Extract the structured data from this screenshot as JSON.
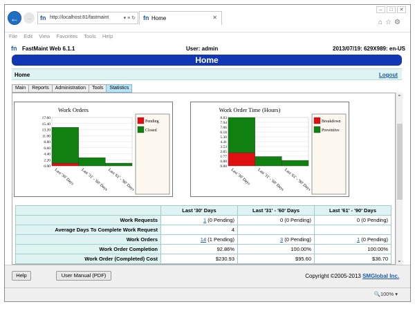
{
  "browser": {
    "url": "http://localhost:81/fastmaint",
    "tab_title": "Home",
    "menu": [
      "File",
      "Edit",
      "View",
      "Favorites",
      "Tools",
      "Help"
    ],
    "zoom": "100%"
  },
  "app": {
    "name": "FastMaint Web 6.1.1",
    "user": "User: admin",
    "datetime": "2013/07/19: 629X989: en-US",
    "page_title": "Home",
    "breadcrumb": "Home",
    "logout": "Logout"
  },
  "tabs": [
    {
      "label": "Main"
    },
    {
      "label": "Reports"
    },
    {
      "label": "Administration"
    },
    {
      "label": "Tools"
    },
    {
      "label": "Statistics",
      "active": true
    }
  ],
  "table": {
    "headers": [
      "Last '30' Days",
      "Last '31' - '60' Days",
      "Last '61' - '90' Days"
    ],
    "rows": [
      {
        "label": "Work Requests",
        "c1_link": "1",
        "c1": " (0 Pending)",
        "c2_link": "",
        "c2": "0 (0 Pending)",
        "c3_link": "",
        "c3": "0 (0 Pending)"
      },
      {
        "label": "Average Days To Complete Work Request",
        "c1_link": "",
        "c1": "4",
        "c2_link": "",
        "c2": "",
        "c3_link": "",
        "c3": ""
      },
      {
        "label": "Work Orders",
        "c1_link": "14",
        "c1": " (1 Pending)",
        "c2_link": "3",
        "c2": " (0 Pending)",
        "c3_link": "1",
        "c3": " (0 Pending)"
      },
      {
        "label": "Work Order Completion",
        "c1_link": "",
        "c1": "92.86%",
        "c2_link": "",
        "c2": "100.00%",
        "c3_link": "",
        "c3": "100.00%"
      },
      {
        "label": "Work Order (Completed) Cost",
        "c1_link": "",
        "c1": "$230.93",
        "c2_link": "",
        "c2": "$95.60",
        "c3_link": "",
        "c3": "$36.70"
      }
    ]
  },
  "footer": {
    "help": "Help",
    "manual": "User Manual (PDF)",
    "copyright": "Copyright ©2005-2013 ",
    "company": "SMGlobal Inc."
  },
  "chart_data": [
    {
      "type": "bar",
      "stacked": true,
      "title": "Work Orders",
      "categories": [
        "Last '30' Days",
        "Last '31' - '60' Days",
        "Last '61' - '90' Days"
      ],
      "y_ticks": [
        "17.60",
        "15.40",
        "13.20",
        "11.00",
        "8.80",
        "6.60",
        "4.40",
        "2.20",
        "0.00"
      ],
      "ylim": [
        0,
        17.6
      ],
      "series": [
        {
          "name": "Pending",
          "color": "#e01010",
          "values": [
            1,
            0,
            0
          ]
        },
        {
          "name": "Closed",
          "color": "#108010",
          "values": [
            13,
            3,
            1
          ]
        }
      ],
      "legend_position": "right"
    },
    {
      "type": "bar",
      "stacked": true,
      "title": "Work Order Time (Hours)",
      "categories": [
        "Last '30' Days",
        "Last '31' - '60' Days",
        "Last '61' - '90' Days"
      ],
      "y_ticks": [
        "8.83",
        "7.94",
        "7.06",
        "6.18",
        "5.30",
        "4.41",
        "3.53",
        "2.65",
        "1.77",
        "0.88",
        "0.00"
      ],
      "ylim": [
        0,
        8.83
      ],
      "series": [
        {
          "name": "Breakdown",
          "color": "#e01010",
          "values": [
            2.4,
            0,
            0
          ]
        },
        {
          "name": "Preventive",
          "color": "#108010",
          "values": [
            6.43,
            1.7,
            1.0
          ]
        }
      ],
      "legend_position": "right"
    }
  ]
}
